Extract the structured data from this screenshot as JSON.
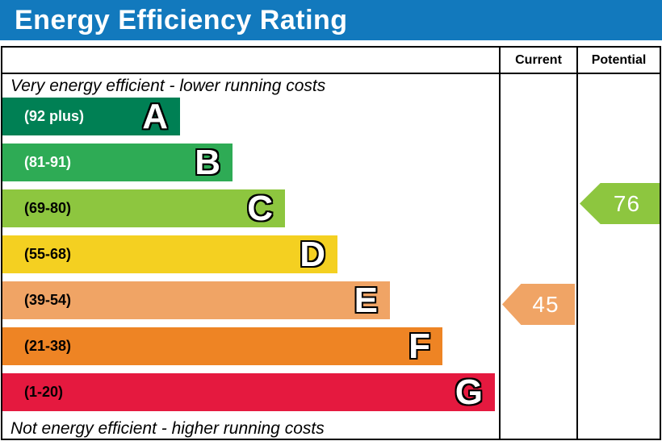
{
  "header": {
    "title": "Energy Efficiency Rating",
    "bg_color": "#1279bd"
  },
  "columns": {
    "current": "Current",
    "potential": "Potential"
  },
  "notes": {
    "top": "Very energy efficient - lower running costs",
    "bottom": "Not energy efficient - higher running costs"
  },
  "chart_data": {
    "type": "bar",
    "title": "Energy Efficiency Rating",
    "bands": [
      {
        "letter": "A",
        "range_label": "(92 plus)",
        "range_min": 92,
        "range_max": 100,
        "color": "#008054",
        "label_color": "#ffffff"
      },
      {
        "letter": "B",
        "range_label": "(81-91)",
        "range_min": 81,
        "range_max": 91,
        "color": "#2eab55",
        "label_color": "#ffffff"
      },
      {
        "letter": "C",
        "range_label": "(69-80)",
        "range_min": 69,
        "range_max": 80,
        "color": "#8dc63f",
        "label_color": "#000000"
      },
      {
        "letter": "D",
        "range_label": "(55-68)",
        "range_min": 55,
        "range_max": 68,
        "color": "#f4d021",
        "label_color": "#000000"
      },
      {
        "letter": "E",
        "range_label": "(39-54)",
        "range_min": 39,
        "range_max": 54,
        "color": "#f0a465",
        "label_color": "#000000"
      },
      {
        "letter": "F",
        "range_label": "(21-38)",
        "range_min": 21,
        "range_max": 38,
        "color": "#ee8424",
        "label_color": "#000000"
      },
      {
        "letter": "G",
        "range_label": "(1-20)",
        "range_min": 1,
        "range_max": 20,
        "color": "#e5193f",
        "label_color": "#000000"
      }
    ],
    "current": {
      "value": 45,
      "band": "E",
      "color": "#f0a465"
    },
    "potential": {
      "value": 76,
      "band": "C",
      "color": "#8dc63f"
    }
  }
}
